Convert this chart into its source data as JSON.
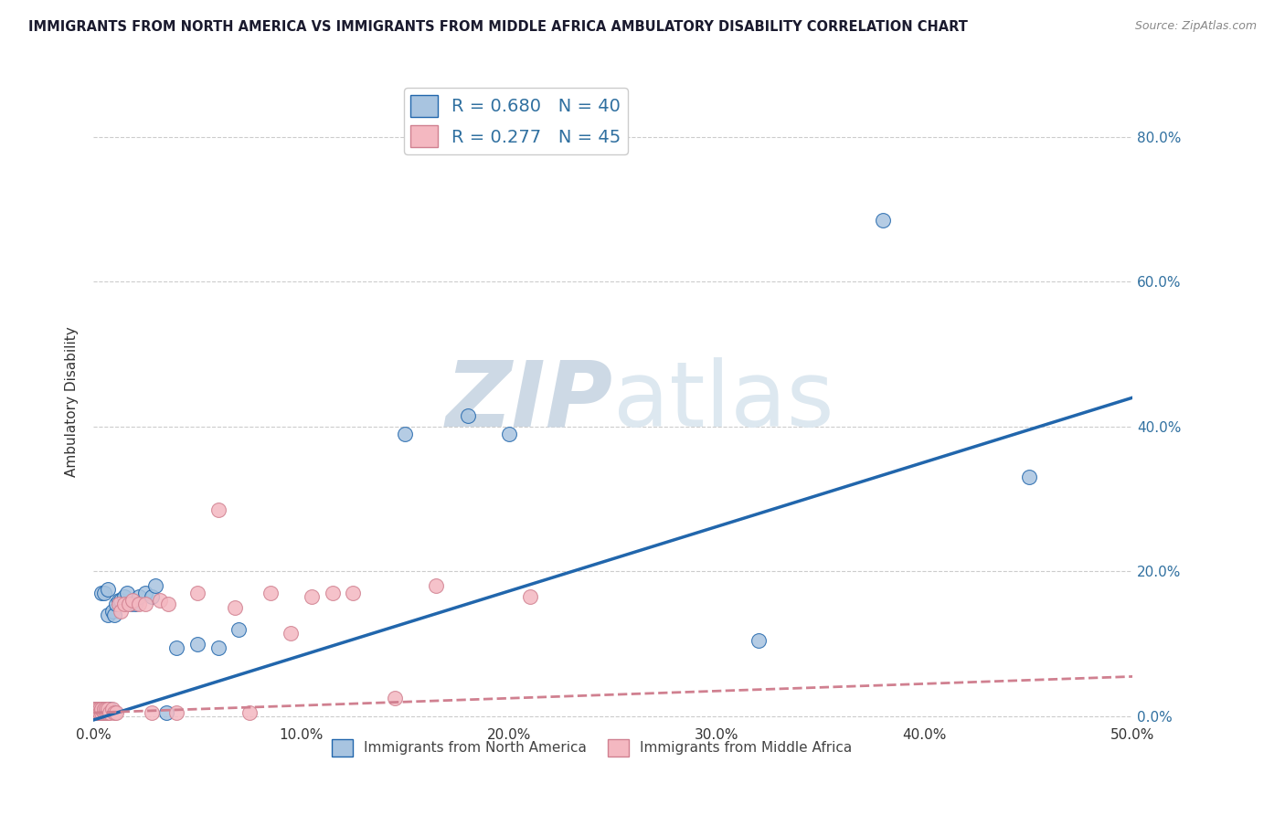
{
  "title": "IMMIGRANTS FROM NORTH AMERICA VS IMMIGRANTS FROM MIDDLE AFRICA AMBULATORY DISABILITY CORRELATION CHART",
  "source": "Source: ZipAtlas.com",
  "ylabel": "Ambulatory Disability",
  "xlim": [
    0.0,
    0.5
  ],
  "ylim": [
    -0.01,
    0.88
  ],
  "xticks": [
    0.0,
    0.1,
    0.2,
    0.3,
    0.4,
    0.5
  ],
  "yticks": [
    0.0,
    0.2,
    0.4,
    0.6,
    0.8
  ],
  "right_ytick_labels": [
    "0.0%",
    "20.0%",
    "40.0%",
    "60.0%",
    "80.0%"
  ],
  "xtick_labels": [
    "0.0%",
    "10.0%",
    "20.0%",
    "30.0%",
    "40.0%",
    "50.0%"
  ],
  "blue_color": "#a8c4e0",
  "pink_color": "#f4b8c1",
  "blue_line_color": "#2166ac",
  "pink_line_color": "#d08090",
  "blue_R": 0.68,
  "blue_N": 40,
  "pink_R": 0.277,
  "pink_N": 45,
  "legend_label_blue": "Immigrants from North America",
  "legend_label_pink": "Immigrants from Middle Africa",
  "blue_x": [
    0.001,
    0.001,
    0.002,
    0.002,
    0.003,
    0.003,
    0.004,
    0.004,
    0.004,
    0.005,
    0.005,
    0.006,
    0.006,
    0.007,
    0.007,
    0.008,
    0.009,
    0.01,
    0.011,
    0.012,
    0.013,
    0.015,
    0.016,
    0.018,
    0.02,
    0.022,
    0.025,
    0.028,
    0.03,
    0.035,
    0.04,
    0.05,
    0.06,
    0.07,
    0.15,
    0.18,
    0.2,
    0.32,
    0.38,
    0.45
  ],
  "blue_y": [
    0.005,
    0.01,
    0.005,
    0.01,
    0.01,
    0.005,
    0.01,
    0.005,
    0.17,
    0.01,
    0.17,
    0.005,
    0.005,
    0.14,
    0.175,
    0.01,
    0.145,
    0.14,
    0.155,
    0.16,
    0.16,
    0.165,
    0.17,
    0.155,
    0.155,
    0.165,
    0.17,
    0.165,
    0.18,
    0.005,
    0.095,
    0.1,
    0.095,
    0.12,
    0.39,
    0.415,
    0.39,
    0.105,
    0.685,
    0.33
  ],
  "pink_x": [
    0.001,
    0.001,
    0.001,
    0.001,
    0.002,
    0.002,
    0.002,
    0.003,
    0.003,
    0.003,
    0.004,
    0.004,
    0.005,
    0.005,
    0.006,
    0.006,
    0.007,
    0.007,
    0.008,
    0.009,
    0.01,
    0.011,
    0.012,
    0.013,
    0.015,
    0.017,
    0.019,
    0.022,
    0.025,
    0.028,
    0.032,
    0.036,
    0.04,
    0.05,
    0.06,
    0.068,
    0.075,
    0.085,
    0.095,
    0.105,
    0.115,
    0.125,
    0.145,
    0.165,
    0.21
  ],
  "pink_y": [
    0.005,
    0.01,
    0.005,
    0.01,
    0.005,
    0.01,
    0.005,
    0.005,
    0.01,
    0.005,
    0.005,
    0.01,
    0.005,
    0.01,
    0.005,
    0.01,
    0.005,
    0.01,
    0.005,
    0.01,
    0.005,
    0.005,
    0.155,
    0.145,
    0.155,
    0.155,
    0.16,
    0.155,
    0.155,
    0.005,
    0.16,
    0.155,
    0.005,
    0.17,
    0.285,
    0.15,
    0.005,
    0.17,
    0.115,
    0.165,
    0.17,
    0.17,
    0.025,
    0.18,
    0.165
  ],
  "blue_intercept": -0.005,
  "blue_slope": 0.89,
  "pink_intercept": 0.005,
  "pink_slope": 0.1,
  "watermark_zip": "ZIP",
  "watermark_atlas": "atlas",
  "watermark_color": "#cdd9e5",
  "background_color": "#ffffff",
  "grid_color": "#cccccc",
  "right_tick_color": "#3070a0",
  "title_color": "#1a1a2e",
  "source_color": "#888888"
}
